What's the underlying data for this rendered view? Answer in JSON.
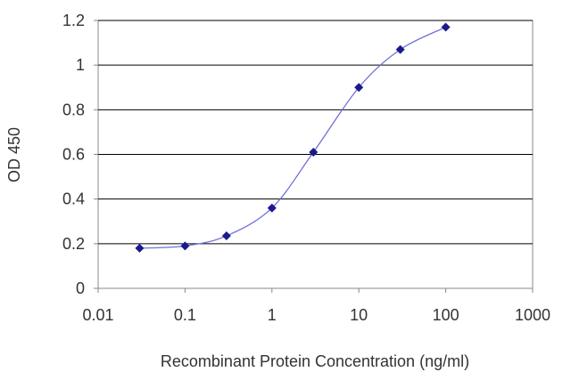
{
  "chart_data": {
    "type": "scatter",
    "title": "",
    "xlabel": "Recombinant Protein Concentration (ng/ml)",
    "ylabel": "OD 450",
    "x_scale": "log",
    "xlim": [
      0.01,
      1000
    ],
    "ylim": [
      0,
      1.2
    ],
    "x_ticks": [
      "0.01",
      "0.1",
      "1",
      "10",
      "100",
      "1000"
    ],
    "y_ticks": [
      "0",
      "0.2",
      "0.4",
      "0.6",
      "0.8",
      "1",
      "1.2"
    ],
    "grid": "horizontal",
    "legend": "none",
    "series": [
      {
        "x": [
          0.03,
          0.1,
          0.3,
          1,
          3,
          10,
          30,
          100
        ],
        "y": [
          0.18,
          0.19,
          0.235,
          0.36,
          0.61,
          0.9,
          1.07,
          1.17
        ],
        "marker": "diamond",
        "line": "smooth"
      }
    ],
    "colors": {
      "series": "#1a1a8c",
      "line": "#6f6fd8",
      "grid": "#000000",
      "axes": "#888888"
    }
  }
}
